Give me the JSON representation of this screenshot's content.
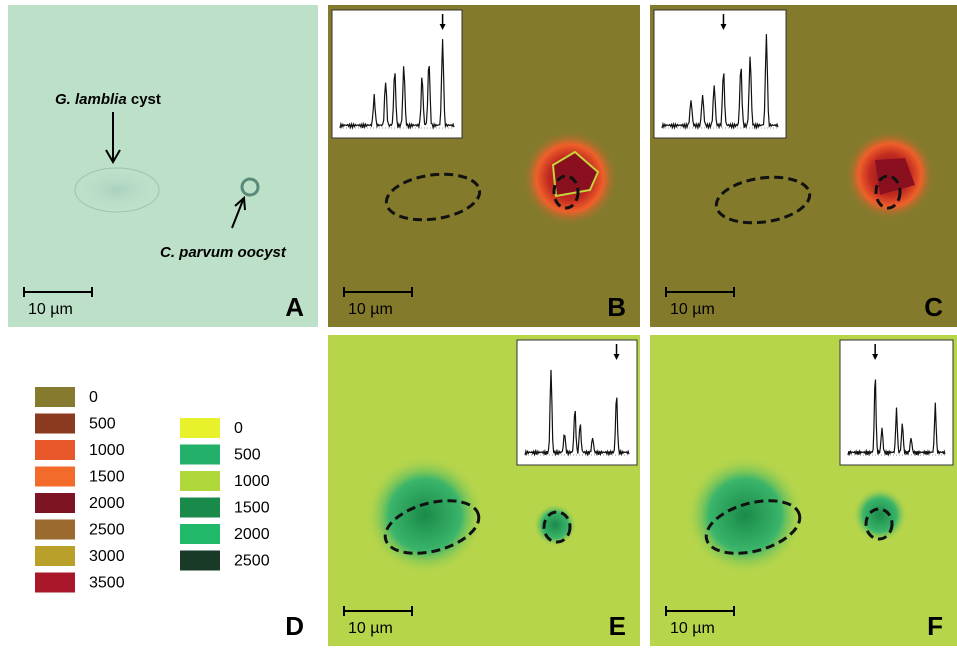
{
  "panels": [
    {
      "label": "A",
      "scale_bar": "10 µm",
      "annotations": [
        {
          "species": "G. lamblia",
          "stage": "cyst"
        },
        {
          "species": "C. parvum",
          "stage": "oocyst"
        }
      ]
    },
    {
      "label": "B",
      "scale_bar": "10 µm"
    },
    {
      "label": "C",
      "scale_bar": "10 µm"
    },
    {
      "label": "D"
    },
    {
      "label": "E",
      "scale_bar": "10 µm"
    },
    {
      "label": "F",
      "scale_bar": "10 µm"
    }
  ],
  "legend_red": [
    {
      "value": 0,
      "color": "#857a2e"
    },
    {
      "value": 500,
      "color": "#8a3a1e"
    },
    {
      "value": 1000,
      "color": "#e8572a"
    },
    {
      "value": 1500,
      "color": "#f36b2a"
    },
    {
      "value": 2000,
      "color": "#7c1422"
    },
    {
      "value": 2500,
      "color": "#9a6a2e"
    },
    {
      "value": 3000,
      "color": "#b8a02a"
    },
    {
      "value": 3500,
      "color": "#a8182a"
    }
  ],
  "legend_green": [
    {
      "value": 0,
      "color": "#e8f22a"
    },
    {
      "value": 500,
      "color": "#22b06a"
    },
    {
      "value": 1000,
      "color": "#b0d83a"
    },
    {
      "value": 1500,
      "color": "#1a8a4a"
    },
    {
      "value": 2000,
      "color": "#22b86a"
    },
    {
      "value": 2500,
      "color": "#1a3a28"
    }
  ]
}
